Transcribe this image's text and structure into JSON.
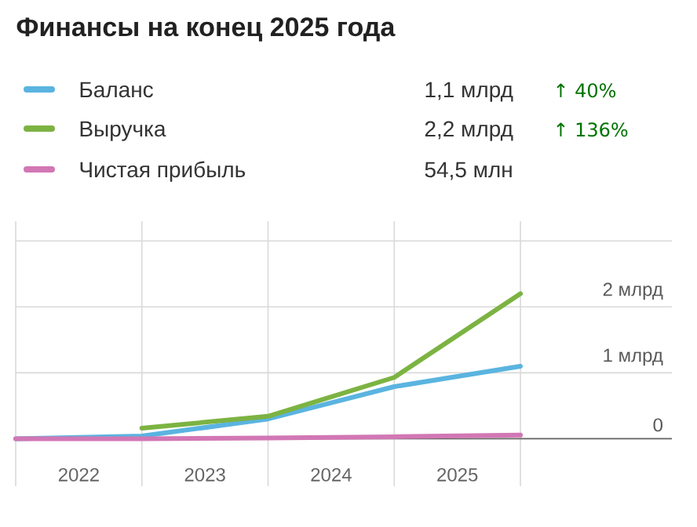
{
  "chart_data": {
    "type": "line",
    "title": "Финансы на конец 2025 года",
    "x": [
      2022,
      2023,
      2024,
      2025,
      2026
    ],
    "xlim": [
      2022,
      2027.2
    ],
    "xticks": [
      {
        "value": 2022,
        "label": null
      },
      {
        "value": 2022.5,
        "label": "2022"
      },
      {
        "value": 2023,
        "label": null
      },
      {
        "value": 2023.5,
        "label": "2023"
      },
      {
        "value": 2024,
        "label": null
      },
      {
        "value": 2024.5,
        "label": "2024"
      },
      {
        "value": 2025,
        "label": null
      },
      {
        "value": 2025.5,
        "label": "2025"
      },
      {
        "value": 2026,
        "label": null
      }
    ],
    "ylim": [
      -0.72,
      3.3
    ],
    "yticks": [
      {
        "value": 0,
        "label": "0"
      },
      {
        "value": 1,
        "label": "1 млрд"
      },
      {
        "value": 2,
        "label": "2 млрд"
      },
      {
        "value": 3,
        "label": null
      }
    ],
    "series": [
      {
        "name": "Баланс",
        "color": "#5ab4e0",
        "values": [
          0,
          0.04,
          0.3,
          0.79,
          1.1
        ]
      },
      {
        "name": "Выручка",
        "color": "#7cb342",
        "values": [
          null,
          0.16,
          0.34,
          0.93,
          2.2
        ]
      },
      {
        "name": "Чистая прибыль",
        "color": "#d277b5",
        "values": [
          0,
          0,
          0.01,
          0.03,
          0.0545
        ]
      }
    ],
    "annotations": [
      "1,1 млрд",
      "↑ 40%",
      "2,2 млрд",
      "↑ 136%",
      "54,5 млн"
    ],
    "grid": true,
    "legend": "top left",
    "line_style": "solid",
    "marker": "none"
  }
}
